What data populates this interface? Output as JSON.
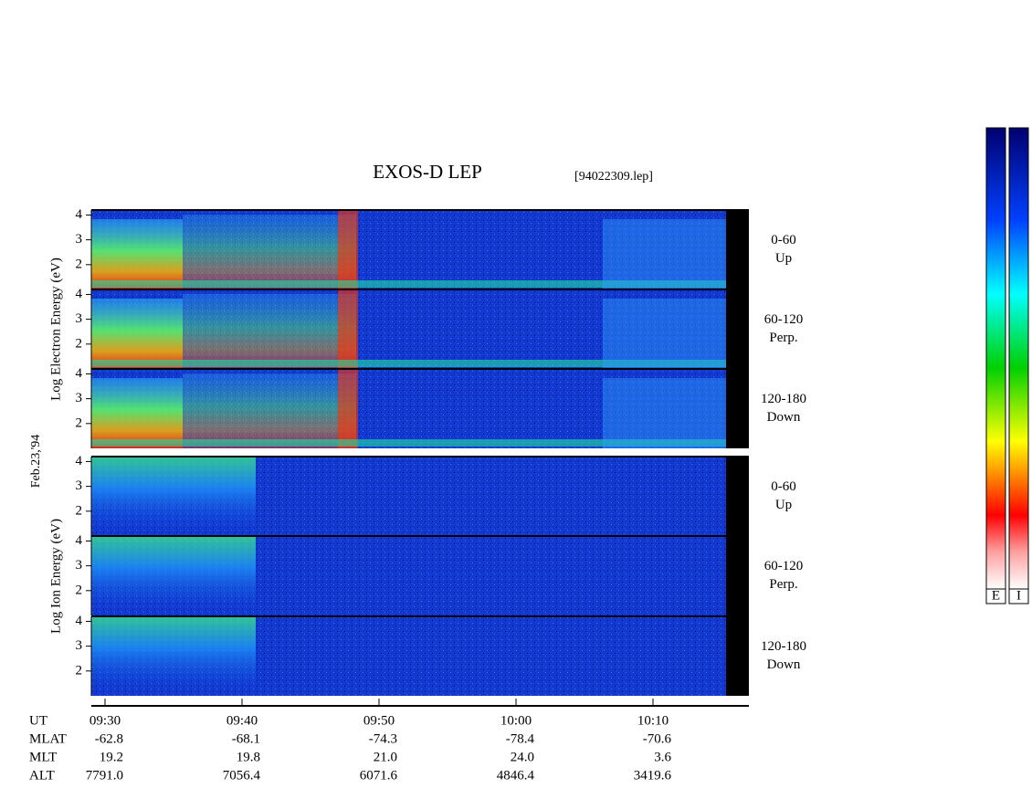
{
  "chart_data": {
    "type": "spectrogram",
    "title": "EXOS-D LEP",
    "file": "[94022309.lep]",
    "date": "Feb.23,'94",
    "groups": [
      {
        "label": "Log Electron Energy (eV)",
        "panels": [
          {
            "angle": "0-60",
            "direction": "Up"
          },
          {
            "angle": "60-120",
            "direction": "Perp."
          },
          {
            "angle": "120-180",
            "direction": "Down"
          }
        ]
      },
      {
        "label": "Log Ion Energy (eV)",
        "panels": [
          {
            "angle": "0-60",
            "direction": "Up"
          },
          {
            "angle": "60-120",
            "direction": "Perp."
          },
          {
            "angle": "120-180",
            "direction": "Down"
          }
        ]
      }
    ],
    "ylim": [
      1,
      4.2
    ],
    "yticks": [
      2,
      3,
      4
    ],
    "xlim": [
      "09:29",
      "10:17"
    ],
    "xticks": [
      "09:30",
      "09:40",
      "09:50",
      "10:00",
      "10:10"
    ],
    "orbit": [
      {
        "label": "MLAT",
        "values": [
          "-62.8",
          "-68.1",
          "-74.3",
          "-78.4",
          "-70.6"
        ]
      },
      {
        "label": "MLT",
        "values": [
          "19.2",
          "19.8",
          "21.0",
          "24.0",
          "3.6"
        ]
      },
      {
        "label": "ALT",
        "values": [
          "7791.0",
          "7056.4",
          "6071.6",
          "4846.4",
          "3419.6"
        ]
      }
    ],
    "x_label": "UT",
    "colorbars": [
      "E",
      "I"
    ]
  }
}
